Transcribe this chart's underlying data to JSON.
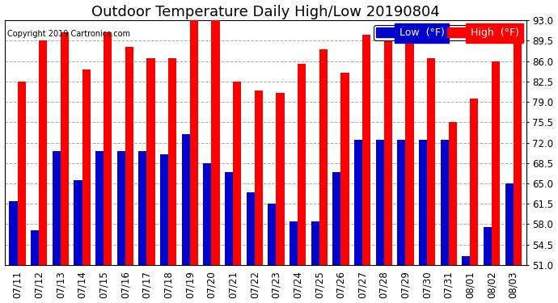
{
  "title": "Outdoor Temperature Daily High/Low 20190804",
  "copyright": "Copyright 2019 Cartronics.com",
  "legend_low": "Low  (°F)",
  "legend_high": "High  (°F)",
  "dates": [
    "07/11",
    "07/12",
    "07/13",
    "07/14",
    "07/15",
    "07/16",
    "07/17",
    "07/18",
    "07/19",
    "07/20",
    "07/21",
    "07/22",
    "07/23",
    "07/24",
    "07/25",
    "07/26",
    "07/27",
    "07/28",
    "07/29",
    "07/30",
    "07/31",
    "08/01",
    "08/02",
    "08/03"
  ],
  "highs": [
    82.5,
    89.5,
    91.0,
    84.5,
    91.0,
    88.5,
    86.5,
    86.5,
    93.0,
    93.0,
    82.5,
    81.0,
    80.5,
    85.5,
    88.0,
    84.0,
    90.5,
    90.0,
    89.5,
    86.5,
    75.5,
    79.5,
    86.0,
    90.5
  ],
  "lows": [
    62.0,
    57.0,
    70.5,
    65.5,
    70.5,
    70.5,
    70.5,
    70.0,
    73.5,
    68.5,
    67.0,
    63.5,
    61.5,
    58.5,
    58.5,
    67.0,
    72.5,
    72.5,
    72.5,
    72.5,
    72.5,
    52.5,
    57.5,
    65.0
  ],
  "ylim_min": 51.0,
  "ylim_max": 93.0,
  "yticks": [
    51.0,
    54.5,
    58.0,
    61.5,
    65.0,
    68.5,
    72.0,
    75.5,
    79.0,
    82.5,
    86.0,
    89.5,
    93.0
  ],
  "bar_width": 0.38,
  "high_color": "#ff0000",
  "low_color": "#0000cc",
  "bg_color": "#ffffff",
  "grid_color": "#aaaaaa",
  "title_fontsize": 13,
  "tick_fontsize": 8.5,
  "legend_fontsize": 9
}
